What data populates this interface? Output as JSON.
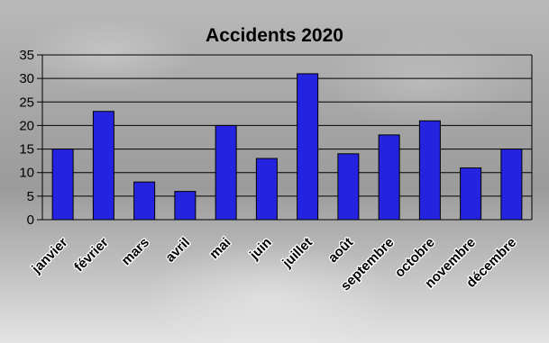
{
  "chart_data": {
    "type": "bar",
    "title": "Accidents 2020",
    "xlabel": "",
    "ylabel": "",
    "categories": [
      "janvier",
      "février",
      "mars",
      "avril",
      "mai",
      "juin",
      "juillet",
      "août",
      "septembre",
      "octobre",
      "novembre",
      "décembre"
    ],
    "values": [
      15,
      23,
      8,
      6,
      20,
      13,
      31,
      14,
      18,
      21,
      11,
      15
    ],
    "ylim": [
      0,
      35
    ],
    "yticks": [
      0,
      5,
      10,
      15,
      20,
      25,
      30,
      35
    ],
    "grid": true,
    "legend": "none",
    "bar_color": "#2424e0"
  }
}
